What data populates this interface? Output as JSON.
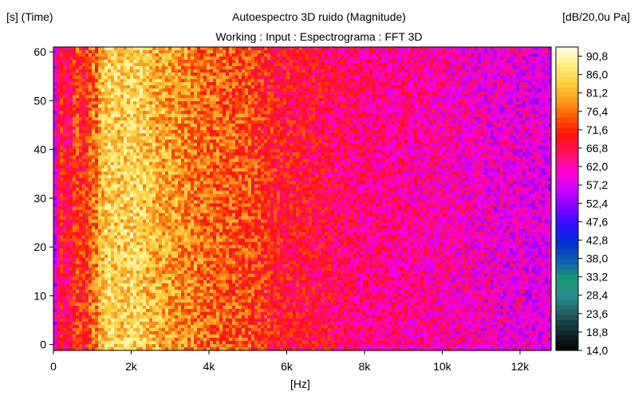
{
  "chart_data": {
    "type": "heatmap",
    "title": "Autoespectro 3D ruido (Magnitude)",
    "subtitle": "Working : Input : Espectrograma : FFT 3D",
    "ylabel": "[s] (Time)",
    "xlabel": "[Hz]",
    "colorbar_label": "[dB/20,0u Pa]",
    "x_ticks": [
      "0",
      "2k",
      "4k",
      "6k",
      "8k",
      "10k",
      "12k"
    ],
    "x_tick_values": [
      0,
      2000,
      4000,
      6000,
      8000,
      10000,
      12000
    ],
    "xlim": [
      0,
      12800
    ],
    "y_ticks": [
      "0",
      "10",
      "20",
      "30",
      "40",
      "50",
      "60"
    ],
    "y_tick_values": [
      0,
      10,
      20,
      30,
      40,
      50,
      60
    ],
    "ylim": [
      -1.2,
      61
    ],
    "colorbar_ticks": [
      "90,8",
      "86,0",
      "81,2",
      "76,4",
      "71,6",
      "66,8",
      "62,0",
      "57,2",
      "52,4",
      "47,6",
      "42,8",
      "38,0",
      "33,2",
      "28,4",
      "23,6",
      "18,8",
      "14,0"
    ],
    "colorbar_values": [
      90.8,
      86.0,
      81.2,
      76.4,
      71.6,
      66.8,
      62.0,
      57.2,
      52.4,
      47.6,
      42.8,
      38.0,
      33.2,
      28.4,
      23.6,
      18.8,
      14.0
    ],
    "zlim": [
      14.0,
      93.2
    ],
    "magnitude_profile": {
      "freq_hz": [
        0,
        60,
        100,
        200,
        300,
        400,
        500,
        600,
        700,
        800,
        900,
        1000,
        1100,
        1200,
        1300,
        1400,
        1500,
        1700,
        2000,
        2300,
        2600,
        3000,
        3500,
        4000,
        4500,
        5000,
        5500,
        6000,
        7000,
        8000,
        9000,
        10000,
        11000,
        12000,
        12800
      ],
      "level_db": [
        55,
        58,
        64,
        70,
        67,
        66,
        70,
        74,
        72,
        70,
        73,
        78,
        76,
        82,
        83,
        85,
        85,
        84,
        85,
        84,
        82,
        80,
        78,
        76,
        75,
        74,
        71,
        69,
        67,
        64,
        63,
        62,
        60,
        59,
        58
      ]
    },
    "colormap": [
      "#000000",
      "#0f2a2f",
      "#1e5a5a",
      "#2a8c8c",
      "#1a9a70",
      "#1060b0",
      "#0030d0",
      "#3010ff",
      "#8000ff",
      "#d000ff",
      "#ff00d0",
      "#ff1060",
      "#ff1010",
      "#ff5000",
      "#ff9a20",
      "#ffd040",
      "#fff080",
      "#fffff0"
    ],
    "grid": false,
    "legend": "colorbar-right"
  }
}
